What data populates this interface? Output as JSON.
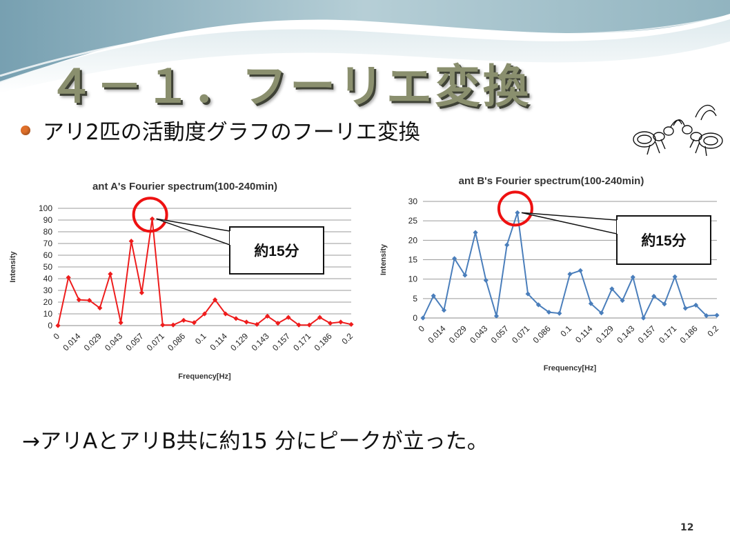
{
  "slide": {
    "title": "４－１．フーリエ変換",
    "bullet": "アリ2匹の活動度グラフのフーリエ変換",
    "conclusion": "→アリAとアリB共に約15 分にピークが立った。",
    "page_number": "12",
    "accent_bullet_color": "#e0702a"
  },
  "chart_data": [
    {
      "type": "line",
      "title": "ant A's Fourier spectrum(100-240min)",
      "xlabel": "Frequency[Hz]",
      "ylabel": "Intensity",
      "ylim": [
        0,
        100
      ],
      "yticks": [
        0,
        10,
        20,
        30,
        40,
        50,
        60,
        70,
        80,
        90,
        100
      ],
      "xtick_labels": [
        "0",
        "0.014",
        "0.029",
        "0.043",
        "0.057",
        "0.071",
        "0.086",
        "0.1",
        "0.114",
        "0.129",
        "0.143",
        "0.157",
        "0.171",
        "0.186",
        "0.2"
      ],
      "grid": true,
      "color": "#ee1c1c",
      "marker": "diamond",
      "series": [
        {
          "values": [
            0,
            41,
            22,
            21.5,
            15,
            44,
            2.5,
            72,
            28,
            91,
            0.5,
            0.5,
            4.5,
            2.5,
            10,
            22,
            10,
            6,
            3,
            1,
            8,
            2,
            7,
            0.5,
            0.5,
            7,
            2,
            3,
            1
          ]
        }
      ],
      "annotation": {
        "text": "約15分",
        "target_index": 9
      }
    },
    {
      "type": "line",
      "title": "ant B's Fourier spectrum(100-240min)",
      "xlabel": "Frequency[Hz]",
      "ylabel": "Intensity",
      "ylim": [
        0,
        30
      ],
      "yticks": [
        0,
        5,
        10,
        15,
        20,
        25,
        30
      ],
      "xtick_labels": [
        "0",
        "0.014",
        "0.029",
        "0.043",
        "0.057",
        "0.071",
        "0.086",
        "0.1",
        "0.114",
        "0.129",
        "0.143",
        "0.157",
        "0.171",
        "0.186",
        "0.2"
      ],
      "grid": true,
      "color": "#4a7ebb",
      "marker": "diamond",
      "series": [
        {
          "values": [
            0,
            5.7,
            2,
            15.3,
            11,
            22,
            9.7,
            0.5,
            18.8,
            27.1,
            6.2,
            3.4,
            1.5,
            1.2,
            11.3,
            12.2,
            3.7,
            1.3,
            7.5,
            4.5,
            10.5,
            0,
            5.6,
            3.6,
            10.6,
            2.5,
            3.3,
            0.6,
            0.7
          ]
        }
      ],
      "annotation": {
        "text": "約15分",
        "target_index": 9
      }
    }
  ]
}
